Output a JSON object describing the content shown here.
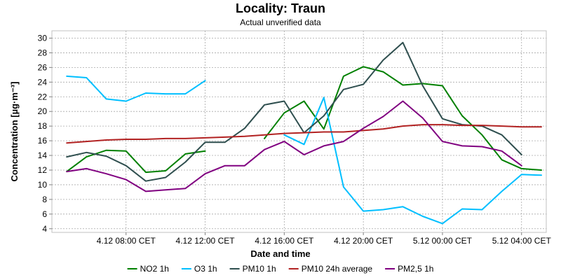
{
  "chart_data": {
    "type": "line",
    "title": "Locality: Traun",
    "subtitle": "Actual unverified data",
    "xlabel": "Date and time",
    "ylabel": "Concentration [µg·m⁻³]",
    "ylim": [
      3.5,
      31
    ],
    "y_ticks": [
      4,
      6,
      8,
      10,
      12,
      14,
      16,
      18,
      20,
      22,
      24,
      26,
      28,
      30
    ],
    "x_range_hours": [
      4.25,
      29.25
    ],
    "x_ticks": [
      {
        "hour": 8,
        "label": "4.12 08:00 CET"
      },
      {
        "hour": 12,
        "label": "4.12 12:00 CET"
      },
      {
        "hour": 16,
        "label": "4.12 16:00 CET"
      },
      {
        "hour": 20,
        "label": "4.12 20:00 CET"
      },
      {
        "hour": 24,
        "label": "5.12 00:00 CET"
      },
      {
        "hour": 28,
        "label": "5.12 04:00 CET"
      }
    ],
    "grid": true,
    "legend_position": "bottom",
    "series": [
      {
        "name": "NO2 1h",
        "color": "#008000",
        "points": [
          [
            5,
            11.8
          ],
          [
            6,
            13.8
          ],
          [
            7,
            14.7
          ],
          [
            8,
            14.6
          ],
          [
            9,
            11.7
          ],
          [
            10,
            11.9
          ],
          [
            11,
            14.2
          ],
          [
            12,
            14.6
          ],
          [
            15,
            16.3
          ],
          [
            16,
            19.8
          ],
          [
            17,
            21.4
          ],
          [
            18,
            17.6
          ],
          [
            19,
            24.8
          ],
          [
            20,
            26.1
          ],
          [
            21,
            25.4
          ],
          [
            22,
            23.6
          ],
          [
            23,
            23.8
          ],
          [
            24,
            23.5
          ],
          [
            25,
            19.4
          ],
          [
            26,
            16.8
          ],
          [
            27,
            13.4
          ],
          [
            28,
            12.2
          ],
          [
            29,
            12.0
          ]
        ]
      },
      {
        "name": "O3 1h",
        "color": "#00bfff",
        "points": [
          [
            5,
            24.8
          ],
          [
            6,
            24.6
          ],
          [
            7,
            21.7
          ],
          [
            8,
            21.4
          ],
          [
            9,
            22.5
          ],
          [
            10,
            22.4
          ],
          [
            11,
            22.4
          ],
          [
            12,
            24.2
          ],
          [
            16,
            16.8
          ],
          [
            17,
            15.5
          ],
          [
            18,
            21.9
          ],
          [
            19,
            9.7
          ],
          [
            20,
            6.4
          ],
          [
            21,
            6.6
          ],
          [
            22,
            7.0
          ],
          [
            23,
            5.7
          ],
          [
            24,
            4.7
          ],
          [
            25,
            6.7
          ],
          [
            26,
            6.6
          ],
          [
            27,
            9.1
          ],
          [
            28,
            11.4
          ],
          [
            29,
            11.3
          ]
        ]
      },
      {
        "name": "PM10 1h",
        "color": "#2f4f4f",
        "points": [
          [
            5,
            13.8
          ],
          [
            6,
            14.4
          ],
          [
            7,
            13.9
          ],
          [
            8,
            12.6
          ],
          [
            9,
            10.5
          ],
          [
            10,
            11.0
          ],
          [
            11,
            13.1
          ],
          [
            12,
            15.8
          ],
          [
            13,
            15.8
          ],
          [
            14,
            17.7
          ],
          [
            15,
            20.9
          ],
          [
            16,
            21.4
          ],
          [
            17,
            17.1
          ],
          [
            18,
            19.4
          ],
          [
            19,
            23.0
          ],
          [
            20,
            23.7
          ],
          [
            21,
            27.0
          ],
          [
            22,
            29.4
          ],
          [
            23,
            23.5
          ],
          [
            24,
            19.0
          ],
          [
            25,
            18.2
          ],
          [
            26,
            18.0
          ],
          [
            27,
            16.8
          ],
          [
            28,
            14.1
          ]
        ]
      },
      {
        "name": "PM10 24h average",
        "color": "#b22222",
        "points": [
          [
            5,
            15.7
          ],
          [
            6,
            15.9
          ],
          [
            7,
            16.1
          ],
          [
            8,
            16.2
          ],
          [
            9,
            16.2
          ],
          [
            10,
            16.3
          ],
          [
            11,
            16.3
          ],
          [
            12,
            16.4
          ],
          [
            13,
            16.5
          ],
          [
            14,
            16.6
          ],
          [
            15,
            16.8
          ],
          [
            16,
            17.0
          ],
          [
            17,
            17.1
          ],
          [
            18,
            17.2
          ],
          [
            19,
            17.2
          ],
          [
            20,
            17.4
          ],
          [
            21,
            17.6
          ],
          [
            22,
            18.0
          ],
          [
            23,
            18.2
          ],
          [
            24,
            18.2
          ],
          [
            25,
            18.1
          ],
          [
            26,
            18.1
          ],
          [
            27,
            18.0
          ],
          [
            28,
            17.9
          ],
          [
            29,
            17.9
          ]
        ]
      },
      {
        "name": "PM2,5 1h",
        "color": "#800080",
        "points": [
          [
            5,
            11.8
          ],
          [
            6,
            12.2
          ],
          [
            7,
            11.5
          ],
          [
            8,
            10.7
          ],
          [
            9,
            9.1
          ],
          [
            10,
            9.3
          ],
          [
            11,
            9.5
          ],
          [
            12,
            11.5
          ],
          [
            13,
            12.6
          ],
          [
            14,
            12.6
          ],
          [
            15,
            14.8
          ],
          [
            16,
            15.9
          ],
          [
            17,
            14.1
          ],
          [
            18,
            15.3
          ],
          [
            19,
            15.9
          ],
          [
            20,
            17.7
          ],
          [
            21,
            19.3
          ],
          [
            22,
            21.4
          ],
          [
            23,
            19.1
          ],
          [
            24,
            15.9
          ],
          [
            25,
            15.3
          ],
          [
            26,
            15.2
          ],
          [
            27,
            14.6
          ],
          [
            28,
            12.6
          ]
        ]
      }
    ]
  }
}
